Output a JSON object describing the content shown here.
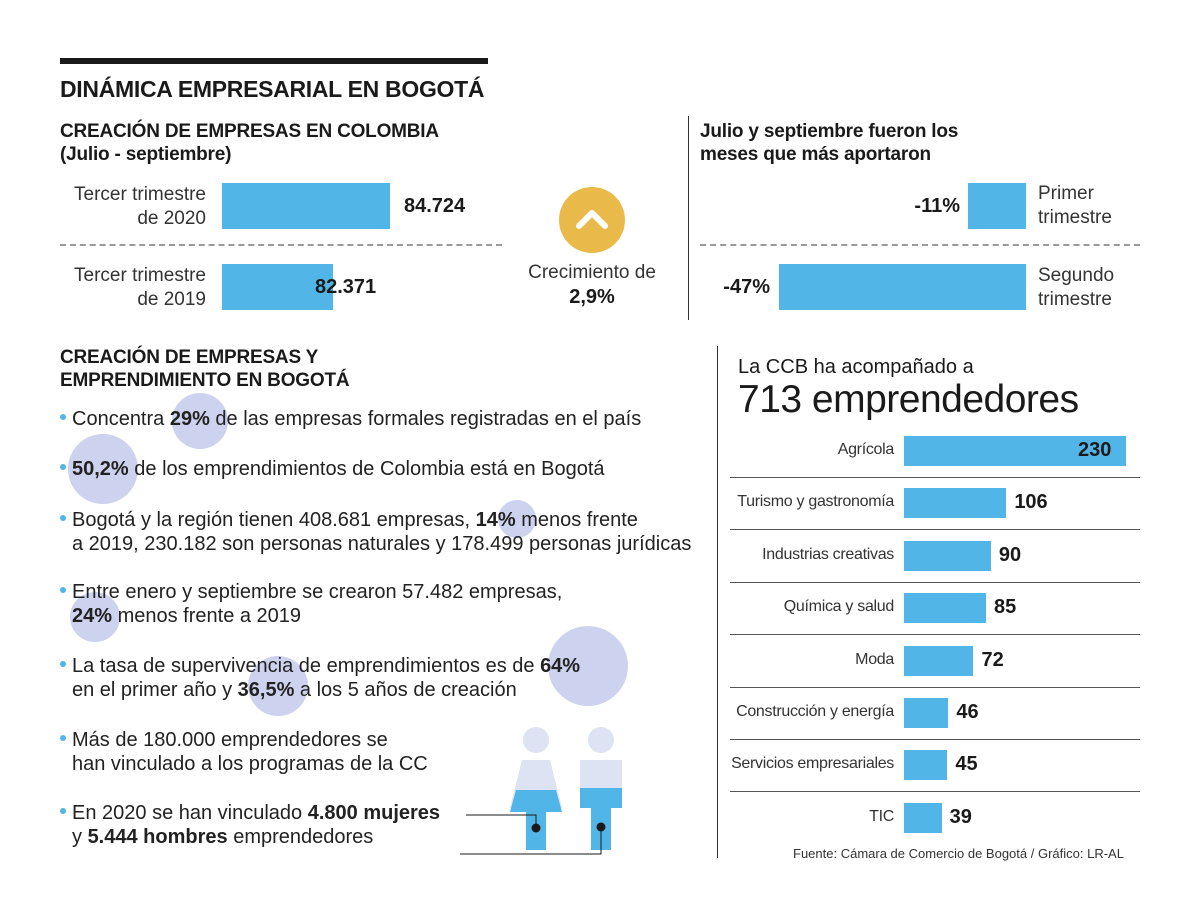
{
  "header": {
    "title": "DINÁMICA EMPRESARIAL EN BOGOTÁ"
  },
  "colors": {
    "bar": "#52b5e8",
    "circle": "#cdd2ee",
    "arrow_circle": "#e9b949",
    "person_light": "#dde3f2"
  },
  "colombia": {
    "title_line1": "CREACIÓN DE EMPRESAS EN COLOMBIA",
    "title_line2": "(Julio - septiembre)",
    "bars": [
      {
        "label_line1": "Tercer trimestre",
        "label_line2": "de 2020",
        "value": 84724,
        "display": "84.724"
      },
      {
        "label_line1": "Tercer trimestre",
        "label_line2": "de 2019",
        "value": 82371,
        "display": "82.371"
      }
    ],
    "growth_label": "Crecimiento de",
    "growth_value": "2,9%",
    "arrow_icon": "chevron-up-icon"
  },
  "quarters": {
    "title_line1": "Julio y septiembre fueron los",
    "title_line2": "meses que más aportaron",
    "bars": [
      {
        "display": "-11%",
        "value": -11,
        "label_line1": "Primer",
        "label_line2": "trimestre"
      },
      {
        "display": "-47%",
        "value": -47,
        "label_line1": "Segundo",
        "label_line2": "trimestre"
      }
    ]
  },
  "bogota": {
    "title_line1": "CREACIÓN DE EMPRESAS Y",
    "title_line2": "EMPRENDIMIENTO EN BOGOTÁ",
    "i1": {
      "a": "Concentra ",
      "b": "29%",
      "c": " de las empresas formales registradas en el país"
    },
    "i2": {
      "b": "50,2%",
      "c": " de los emprendimientos de Colombia está en Bogotá"
    },
    "i3": {
      "a": "Bogotá y la región tienen 408.681 empresas, ",
      "b": "14%",
      "c": " menos frente",
      "line2": "a 2019, 230.182 son personas naturales y 178.499 personas jurídicas"
    },
    "i4": {
      "a": "Entre enero y septiembre se crearon 57.482 empresas,",
      "b": "24%",
      "c": " menos frente a 2019"
    },
    "i5": {
      "a": "La tasa de supervivencia de emprendimientos es de ",
      "b": "64%",
      "c": "en el primer año y ",
      "d": "36,5%",
      "e": " a los 5 años de creación"
    },
    "i6": {
      "line1": "Más de 180.000 emprendedores se",
      "line2": "han vinculado a los programas de la CC"
    },
    "i7": {
      "a": "En 2020 se han vinculado ",
      "b": "4.800 mujeres",
      "c": "y ",
      "d": "5.444 hombres",
      "e": " emprendedores"
    }
  },
  "ccb": {
    "subtitle": "La CCB ha acompañado a",
    "headline": "713 emprendedores",
    "source": "Fuente: Cámara de Comercio de Bogotá / Gráfico: LR-AL"
  },
  "chart_data": [
    {
      "type": "bar",
      "orientation": "horizontal",
      "title": "CREACIÓN DE EMPRESAS EN COLOMBIA (Julio - septiembre)",
      "categories": [
        "Tercer trimestre de 2020",
        "Tercer trimestre de 2019"
      ],
      "values": [
        84724,
        82371
      ]
    },
    {
      "type": "bar",
      "orientation": "horizontal",
      "title": "Julio y septiembre fueron los meses que más aportaron",
      "categories": [
        "Primer trimestre",
        "Segundo trimestre"
      ],
      "values": [
        -11,
        -47
      ],
      "unit": "%"
    },
    {
      "type": "bar",
      "orientation": "horizontal",
      "title": "713 emprendedores",
      "categories": [
        "Agrícola",
        "Turismo y gastronomía",
        "Industrias creativas",
        "Química y salud",
        "Moda",
        "Construcción y energía",
        "Servicios empresariales",
        "TIC"
      ],
      "values": [
        230,
        106,
        90,
        85,
        72,
        46,
        45,
        39
      ],
      "xlim": [
        0,
        230
      ]
    }
  ]
}
